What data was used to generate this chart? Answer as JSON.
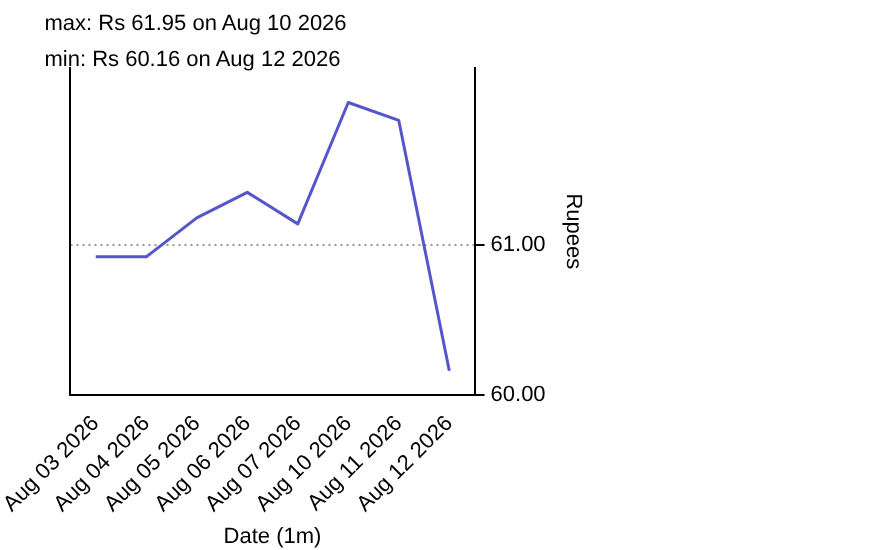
{
  "chart_data": {
    "type": "line",
    "xlabel": "Date (1m)",
    "ylabel": "Rupees",
    "annotations": [
      "max: Rs 61.95 on Aug 10 2026",
      "min: Rs 60.16 on Aug 12 2026"
    ],
    "categories": [
      "Aug 03 2026",
      "Aug 04 2026",
      "Aug 05 2026",
      "Aug 06 2026",
      "Aug 07 2026",
      "Aug 10 2026",
      "Aug 11 2026",
      "Aug 12 2026"
    ],
    "series": [
      {
        "color": "#5555cc",
        "values": [
          60.92,
          60.92,
          61.18,
          61.35,
          61.14,
          61.95,
          61.83,
          60.16
        ]
      }
    ],
    "ylim": [
      60,
      62.18
    ],
    "yticks": [
      {
        "value": 60,
        "label": "60.00"
      },
      {
        "value": 61,
        "label": "61.00"
      }
    ],
    "grid": "y",
    "marker": "none",
    "line_style": "solid"
  }
}
